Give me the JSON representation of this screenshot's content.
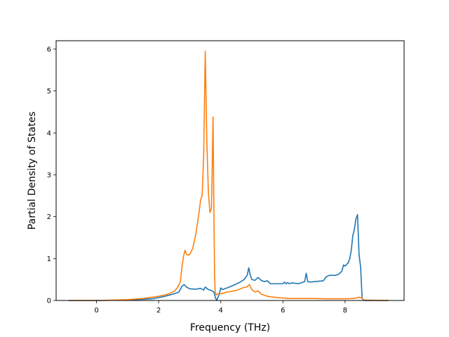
{
  "chart_data": {
    "type": "line",
    "title": "",
    "xlabel": "Frequency (THz)",
    "ylabel": "Partial Density of States",
    "xlim": [
      -1.3,
      9.9
    ],
    "ylim": [
      0,
      6.2
    ],
    "xticks": [
      0,
      2,
      4,
      6,
      8
    ],
    "yticks": [
      0,
      1,
      2,
      3,
      4,
      5,
      6
    ],
    "grid": false,
    "legend": "none",
    "series": [
      {
        "color": "#1f77b4",
        "x": [
          -0.9,
          0.0,
          1.0,
          1.8,
          2.2,
          2.5,
          2.65,
          2.75,
          2.82,
          2.9,
          3.0,
          3.2,
          3.35,
          3.45,
          3.5,
          3.6,
          3.7,
          3.78,
          3.82,
          3.87,
          3.95,
          4.0,
          4.05,
          4.2,
          4.4,
          4.6,
          4.75,
          4.85,
          4.9,
          4.95,
          5.0,
          5.1,
          5.2,
          5.3,
          5.4,
          5.5,
          5.6,
          5.8,
          6.0,
          6.05,
          6.1,
          6.15,
          6.2,
          6.3,
          6.5,
          6.7,
          6.75,
          6.8,
          6.9,
          7.0,
          7.3,
          7.4,
          7.5,
          7.7,
          7.8,
          7.9,
          7.95,
          8.0,
          8.1,
          8.15,
          8.2,
          8.25,
          8.3,
          8.35,
          8.4,
          8.45,
          8.5,
          8.55,
          8.6,
          9.4
        ],
        "values": [
          0,
          0,
          0.01,
          0.04,
          0.1,
          0.16,
          0.2,
          0.34,
          0.38,
          0.32,
          0.28,
          0.27,
          0.29,
          0.25,
          0.32,
          0.26,
          0.24,
          0.2,
          0.08,
          0.0,
          0.15,
          0.3,
          0.26,
          0.3,
          0.36,
          0.43,
          0.5,
          0.6,
          0.78,
          0.6,
          0.5,
          0.48,
          0.55,
          0.48,
          0.45,
          0.47,
          0.4,
          0.4,
          0.4,
          0.44,
          0.4,
          0.43,
          0.4,
          0.42,
          0.4,
          0.45,
          0.65,
          0.45,
          0.44,
          0.45,
          0.47,
          0.57,
          0.6,
          0.6,
          0.63,
          0.7,
          0.85,
          0.82,
          0.9,
          1.0,
          1.2,
          1.55,
          1.7,
          1.95,
          2.05,
          1.1,
          0.8,
          0.05,
          0,
          0
        ]
      },
      {
        "color": "#ff7f0e",
        "x": [
          -0.9,
          0.0,
          1.0,
          1.5,
          2.0,
          2.3,
          2.5,
          2.6,
          2.7,
          2.75,
          2.8,
          2.85,
          2.9,
          2.95,
          3.0,
          3.1,
          3.2,
          3.3,
          3.35,
          3.4,
          3.45,
          3.48,
          3.5,
          3.55,
          3.6,
          3.65,
          3.7,
          3.72,
          3.75,
          3.78,
          3.8,
          3.82,
          3.85,
          3.9,
          4.0,
          4.2,
          4.5,
          4.7,
          4.85,
          4.92,
          5.0,
          5.1,
          5.2,
          5.3,
          5.5,
          5.8,
          6.2,
          6.8,
          7.5,
          8.0,
          8.3,
          8.45,
          8.55,
          8.6,
          9.4
        ],
        "values": [
          0,
          0,
          0.02,
          0.05,
          0.1,
          0.15,
          0.22,
          0.3,
          0.45,
          0.8,
          1.05,
          1.2,
          1.1,
          1.08,
          1.1,
          1.25,
          1.6,
          2.1,
          2.4,
          2.5,
          3.5,
          5.0,
          5.95,
          3.8,
          2.6,
          2.1,
          2.2,
          3.0,
          4.38,
          2.0,
          0.6,
          0.2,
          0.13,
          0.16,
          0.16,
          0.2,
          0.24,
          0.3,
          0.33,
          0.38,
          0.26,
          0.2,
          0.23,
          0.15,
          0.1,
          0.07,
          0.05,
          0.05,
          0.04,
          0.04,
          0.05,
          0.08,
          0.06,
          0.01,
          0.0
        ]
      }
    ]
  }
}
